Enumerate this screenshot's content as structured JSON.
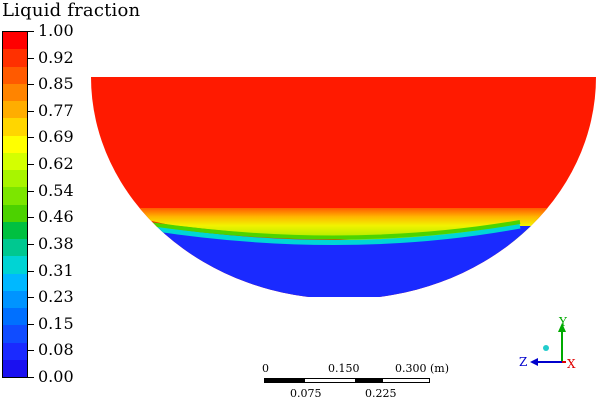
{
  "legend": {
    "title": "Liquid fraction",
    "ticks": [
      "1.00",
      "0.92",
      "0.85",
      "0.77",
      "0.69",
      "0.62",
      "0.54",
      "0.46",
      "0.38",
      "0.31",
      "0.23",
      "0.15",
      "0.08",
      "0.00"
    ]
  },
  "colors": {
    "red": "#ff1a00",
    "orange": "#ff8a00",
    "yellow": "#f5f500",
    "green": "#7cdc00",
    "cyan": "#00e0e0",
    "blue": "#1a2aff",
    "axis_x": "#e00000",
    "axis_y": "#00aa00",
    "axis_z": "#0000cc"
  },
  "scale_bar": {
    "top_labels": [
      "0",
      "0.150",
      "0.300 (m)"
    ],
    "bottom_labels": [
      "0.075",
      "0.225"
    ]
  },
  "axes": {
    "x": "X",
    "y": "Y",
    "z": "Z"
  }
}
